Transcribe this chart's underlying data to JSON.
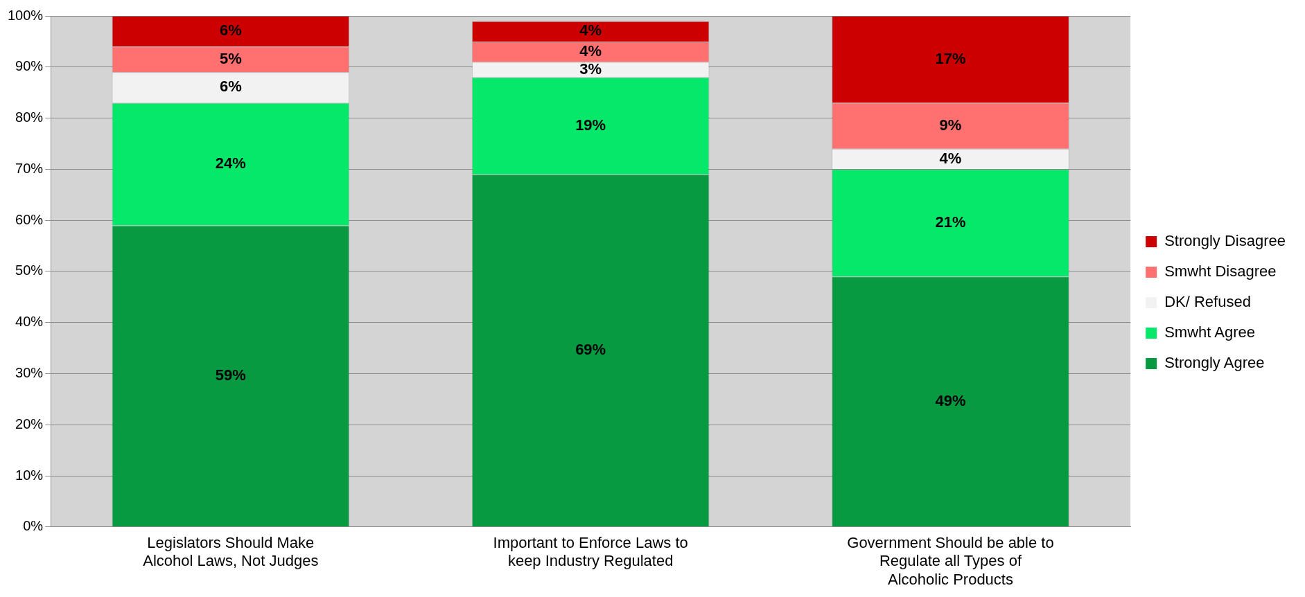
{
  "chart_data": {
    "type": "bar",
    "stacked": true,
    "categories": [
      "Legislators Should Make Alcohol Laws, Not Judges",
      "Important to Enforce Laws to keep Industry Regulated",
      "Government Should be able to Regulate all Types of Alcoholic Products"
    ],
    "series": [
      {
        "name": "Strongly Agree",
        "color": "#079a41",
        "values": [
          59,
          69,
          49
        ],
        "value_labels": [
          "59%",
          "69%",
          "49%"
        ]
      },
      {
        "name": "Smwht Agree",
        "color": "#06e86a",
        "values": [
          24,
          19,
          21
        ],
        "value_labels": [
          "24%",
          "19%",
          "21%"
        ]
      },
      {
        "name": "DK/ Refused",
        "color": "#f2f2f2",
        "values": [
          6,
          3,
          4
        ],
        "value_labels": [
          "6%",
          "3%",
          "4%"
        ]
      },
      {
        "name": "Smwht Disagree",
        "color": "#ff7070",
        "values": [
          5,
          4,
          9
        ],
        "value_labels": [
          "5%",
          "4%",
          "9%"
        ]
      },
      {
        "name": "Strongly Disagree",
        "color": "#cc0000",
        "values": [
          6,
          4,
          17
        ],
        "value_labels": [
          "6%",
          "4%",
          "17%"
        ]
      }
    ],
    "ylim": [
      0,
      100
    ],
    "yticks": [
      {
        "value": 0,
        "label": "0%"
      },
      {
        "value": 10,
        "label": "10%"
      },
      {
        "value": 20,
        "label": "20%"
      },
      {
        "value": 30,
        "label": "30%"
      },
      {
        "value": 40,
        "label": "40%"
      },
      {
        "value": 50,
        "label": "50%"
      },
      {
        "value": 60,
        "label": "60%"
      },
      {
        "value": 70,
        "label": "70%"
      },
      {
        "value": 80,
        "label": "80%"
      },
      {
        "value": 90,
        "label": "90%"
      },
      {
        "value": 100,
        "label": "100%"
      }
    ],
    "grid": "y",
    "legend": "right"
  }
}
